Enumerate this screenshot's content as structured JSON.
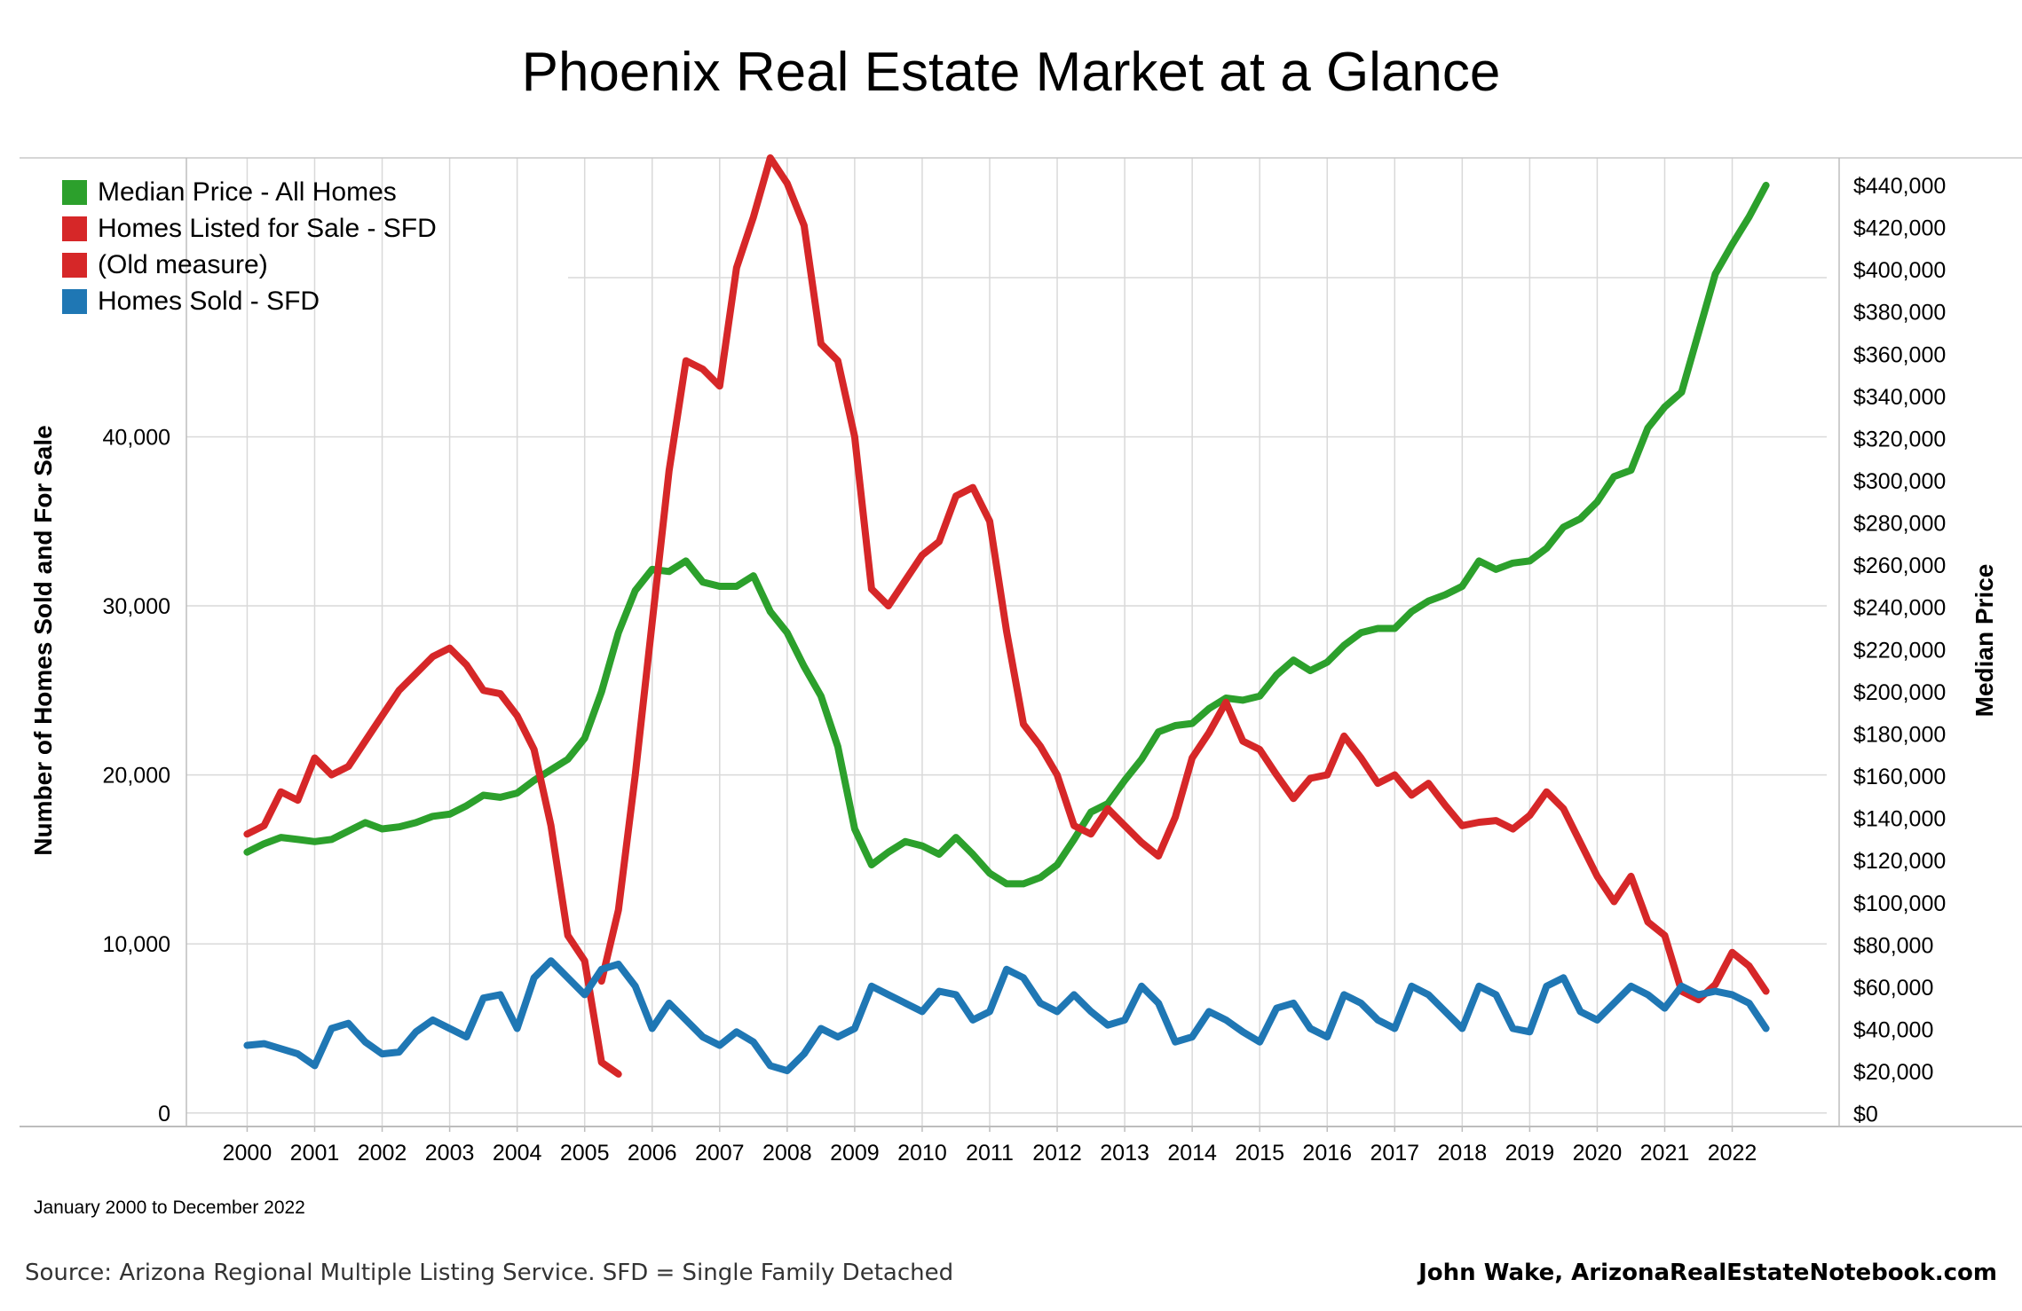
{
  "title": "Phoenix Real Estate Market at a Glance",
  "date_range": "January 2000 to December 2022",
  "source": "Source: Arizona Regional Multiple Listing Service. SFD = Single Family Detached",
  "byline": "John Wake, ArizonaRealEstateNotebook.com",
  "legend": [
    {
      "label": "Median Price - All Homes",
      "color": "#2ca02c"
    },
    {
      "label": "Homes Listed for Sale - SFD",
      "color": "#d62728"
    },
    {
      "label": "(Old measure)",
      "color": "#d62728"
    },
    {
      "label": "Homes Sold - SFD",
      "color": "#1f77b4"
    }
  ],
  "chart_data": {
    "type": "line",
    "title": "Phoenix Real Estate Market at a Glance",
    "xlabel": "",
    "ylabel_left": "Number of Homes Sold and For Sale",
    "ylabel_right": "Median Price",
    "x_ticks": [
      "2000",
      "2001",
      "2002",
      "2003",
      "2004",
      "2005",
      "2006",
      "2007",
      "2008",
      "2009",
      "2010",
      "2011",
      "2012",
      "2013",
      "2014",
      "2015",
      "2016",
      "2017",
      "2018",
      "2019",
      "2020",
      "2021",
      "2022"
    ],
    "y_left_ticks": [
      "0",
      "10,000",
      "20,000",
      "30,000",
      "40,000"
    ],
    "y_right_ticks": [
      "$0",
      "$20,000",
      "$40,000",
      "$60,000",
      "$80,000",
      "$100,000",
      "$120,000",
      "$140,000",
      "$160,000",
      "$180,000",
      "$200,000",
      "$220,000",
      "$240,000",
      "$260,000",
      "$280,000",
      "$300,000",
      "$320,000",
      "$340,000",
      "$360,000",
      "$380,000",
      "$400,000",
      "$420,000",
      "$440,000"
    ],
    "x_range": [
      1999.1,
      2023.4
    ],
    "y_left_range": [
      -800,
      56500
    ],
    "y_right_range": [
      -6000,
      453000
    ],
    "grid": true,
    "legend_position": "top-left",
    "series": [
      {
        "name": "Median Price - All Homes",
        "axis": "right",
        "color": "#2ca02c",
        "points": [
          [
            2000.0,
            124000
          ],
          [
            2000.25,
            128000
          ],
          [
            2000.5,
            131000
          ],
          [
            2000.75,
            130000
          ],
          [
            2001.0,
            129000
          ],
          [
            2001.25,
            130000
          ],
          [
            2001.5,
            134000
          ],
          [
            2001.75,
            138000
          ],
          [
            2002.0,
            135000
          ],
          [
            2002.25,
            136000
          ],
          [
            2002.5,
            138000
          ],
          [
            2002.75,
            141000
          ],
          [
            2003.0,
            142000
          ],
          [
            2003.25,
            146000
          ],
          [
            2003.5,
            151000
          ],
          [
            2003.75,
            150000
          ],
          [
            2004.0,
            152000
          ],
          [
            2004.25,
            158000
          ],
          [
            2004.5,
            163000
          ],
          [
            2004.75,
            168000
          ],
          [
            2005.0,
            178000
          ],
          [
            2005.25,
            200000
          ],
          [
            2005.5,
            228000
          ],
          [
            2005.75,
            248000
          ],
          [
            2006.0,
            258000
          ],
          [
            2006.25,
            257000
          ],
          [
            2006.5,
            262000
          ],
          [
            2006.75,
            252000
          ],
          [
            2007.0,
            250000
          ],
          [
            2007.25,
            250000
          ],
          [
            2007.5,
            255000
          ],
          [
            2007.75,
            238000
          ],
          [
            2008.0,
            228000
          ],
          [
            2008.25,
            212000
          ],
          [
            2008.5,
            198000
          ],
          [
            2008.75,
            174000
          ],
          [
            2009.0,
            135000
          ],
          [
            2009.25,
            118000
          ],
          [
            2009.5,
            124000
          ],
          [
            2009.75,
            129000
          ],
          [
            2010.0,
            127000
          ],
          [
            2010.25,
            123000
          ],
          [
            2010.5,
            131000
          ],
          [
            2010.75,
            123000
          ],
          [
            2011.0,
            114000
          ],
          [
            2011.25,
            109000
          ],
          [
            2011.5,
            109000
          ],
          [
            2011.75,
            112000
          ],
          [
            2012.0,
            118000
          ],
          [
            2012.25,
            130000
          ],
          [
            2012.5,
            143000
          ],
          [
            2012.75,
            147000
          ],
          [
            2013.0,
            158000
          ],
          [
            2013.25,
            168000
          ],
          [
            2013.5,
            181000
          ],
          [
            2013.75,
            184000
          ],
          [
            2014.0,
            185000
          ],
          [
            2014.25,
            192000
          ],
          [
            2014.5,
            197000
          ],
          [
            2014.75,
            196000
          ],
          [
            2015.0,
            198000
          ],
          [
            2015.25,
            208000
          ],
          [
            2015.5,
            215000
          ],
          [
            2015.75,
            210000
          ],
          [
            2016.0,
            214000
          ],
          [
            2016.25,
            222000
          ],
          [
            2016.5,
            228000
          ],
          [
            2016.75,
            230000
          ],
          [
            2017.0,
            230000
          ],
          [
            2017.25,
            238000
          ],
          [
            2017.5,
            243000
          ],
          [
            2017.75,
            246000
          ],
          [
            2018.0,
            250000
          ],
          [
            2018.25,
            262000
          ],
          [
            2018.5,
            258000
          ],
          [
            2018.75,
            261000
          ],
          [
            2019.0,
            262000
          ],
          [
            2019.25,
            268000
          ],
          [
            2019.5,
            278000
          ],
          [
            2019.75,
            282000
          ],
          [
            2020.0,
            290000
          ],
          [
            2020.25,
            302000
          ],
          [
            2020.5,
            305000
          ],
          [
            2020.75,
            325000
          ],
          [
            2021.0,
            335000
          ],
          [
            2021.25,
            342000
          ],
          [
            2021.5,
            370000
          ],
          [
            2021.75,
            398000
          ],
          [
            2022.0,
            412000
          ],
          [
            2022.25,
            425000
          ],
          [
            2022.5,
            440000
          ]
        ]
      },
      {
        "name": "Homes Listed for Sale - SFD",
        "axis": "left",
        "color": "#d62728",
        "points": [
          [
            2005.25,
            7800
          ],
          [
            2005.5,
            12000
          ],
          [
            2005.75,
            20000
          ],
          [
            2006.0,
            29000
          ],
          [
            2006.25,
            38000
          ],
          [
            2006.5,
            44500
          ],
          [
            2006.75,
            44000
          ],
          [
            2007.0,
            43000
          ],
          [
            2007.25,
            50000
          ],
          [
            2007.5,
            53000
          ],
          [
            2007.75,
            56500
          ],
          [
            2008.0,
            55000
          ],
          [
            2008.25,
            52500
          ],
          [
            2008.5,
            45500
          ],
          [
            2008.75,
            44500
          ],
          [
            2009.0,
            40000
          ],
          [
            2009.25,
            31000
          ],
          [
            2009.5,
            30000
          ],
          [
            2009.75,
            31500
          ],
          [
            2010.0,
            33000
          ],
          [
            2010.25,
            33800
          ],
          [
            2010.5,
            36500
          ],
          [
            2010.75,
            37000
          ],
          [
            2011.0,
            35000
          ],
          [
            2011.25,
            28500
          ],
          [
            2011.5,
            23000
          ],
          [
            2011.75,
            21700
          ],
          [
            2012.0,
            20000
          ],
          [
            2012.25,
            17000
          ],
          [
            2012.5,
            16500
          ],
          [
            2012.75,
            18000
          ],
          [
            2013.0,
            17000
          ],
          [
            2013.25,
            16000
          ],
          [
            2013.5,
            15200
          ],
          [
            2013.75,
            17500
          ],
          [
            2014.0,
            21000
          ],
          [
            2014.25,
            22500
          ],
          [
            2014.5,
            24300
          ],
          [
            2014.75,
            22000
          ],
          [
            2015.0,
            21500
          ],
          [
            2015.25,
            20000
          ],
          [
            2015.5,
            18600
          ],
          [
            2015.75,
            19800
          ],
          [
            2016.0,
            20000
          ],
          [
            2016.25,
            22300
          ],
          [
            2016.5,
            21000
          ],
          [
            2016.75,
            19500
          ],
          [
            2017.0,
            20000
          ],
          [
            2017.25,
            18800
          ],
          [
            2017.5,
            19500
          ],
          [
            2017.75,
            18200
          ],
          [
            2018.0,
            17000
          ],
          [
            2018.25,
            17200
          ],
          [
            2018.5,
            17300
          ],
          [
            2018.75,
            16800
          ],
          [
            2019.0,
            17600
          ],
          [
            2019.25,
            19000
          ],
          [
            2019.5,
            18000
          ],
          [
            2019.75,
            16000
          ],
          [
            2020.0,
            14000
          ],
          [
            2020.25,
            12500
          ],
          [
            2020.5,
            14000
          ],
          [
            2020.75,
            11300
          ],
          [
            2021.0,
            10500
          ],
          [
            2021.25,
            7200
          ],
          [
            2021.5,
            6700
          ],
          [
            2021.75,
            7600
          ],
          [
            2022.0,
            9500
          ],
          [
            2022.25,
            8700
          ],
          [
            2022.5,
            7200
          ]
        ]
      },
      {
        "name": "(Old measure)",
        "axis": "left",
        "color": "#d62728",
        "points": [
          [
            2000.0,
            16500
          ],
          [
            2000.25,
            17000
          ],
          [
            2000.5,
            19000
          ],
          [
            2000.75,
            18500
          ],
          [
            2001.0,
            21000
          ],
          [
            2001.25,
            20000
          ],
          [
            2001.5,
            20500
          ],
          [
            2001.75,
            22000
          ],
          [
            2002.0,
            23500
          ],
          [
            2002.25,
            25000
          ],
          [
            2002.5,
            26000
          ],
          [
            2002.75,
            27000
          ],
          [
            2003.0,
            27500
          ],
          [
            2003.25,
            26500
          ],
          [
            2003.5,
            25000
          ],
          [
            2003.75,
            24800
          ],
          [
            2004.0,
            23500
          ],
          [
            2004.25,
            21500
          ],
          [
            2004.5,
            17000
          ],
          [
            2004.75,
            10500
          ],
          [
            2005.0,
            9000
          ],
          [
            2005.25,
            3000
          ],
          [
            2005.5,
            2300
          ]
        ]
      },
      {
        "name": "Homes Sold - SFD",
        "axis": "left",
        "color": "#1f77b4",
        "points": [
          [
            2000.0,
            4000
          ],
          [
            2000.25,
            4100
          ],
          [
            2000.5,
            3800
          ],
          [
            2000.75,
            3500
          ],
          [
            2001.0,
            2800
          ],
          [
            2001.25,
            5000
          ],
          [
            2001.5,
            5300
          ],
          [
            2001.75,
            4200
          ],
          [
            2002.0,
            3500
          ],
          [
            2002.25,
            3600
          ],
          [
            2002.5,
            4800
          ],
          [
            2002.75,
            5500
          ],
          [
            2003.0,
            5000
          ],
          [
            2003.25,
            4500
          ],
          [
            2003.5,
            6800
          ],
          [
            2003.75,
            7000
          ],
          [
            2004.0,
            5000
          ],
          [
            2004.25,
            8000
          ],
          [
            2004.5,
            9000
          ],
          [
            2004.75,
            8000
          ],
          [
            2005.0,
            7000
          ],
          [
            2005.25,
            8500
          ],
          [
            2005.5,
            8800
          ],
          [
            2005.75,
            7500
          ],
          [
            2006.0,
            5000
          ],
          [
            2006.25,
            6500
          ],
          [
            2006.5,
            5500
          ],
          [
            2006.75,
            4500
          ],
          [
            2007.0,
            4000
          ],
          [
            2007.25,
            4800
          ],
          [
            2007.5,
            4200
          ],
          [
            2007.75,
            2800
          ],
          [
            2008.0,
            2500
          ],
          [
            2008.25,
            3500
          ],
          [
            2008.5,
            5000
          ],
          [
            2008.75,
            4500
          ],
          [
            2009.0,
            5000
          ],
          [
            2009.25,
            7500
          ],
          [
            2009.5,
            7000
          ],
          [
            2009.75,
            6500
          ],
          [
            2010.0,
            6000
          ],
          [
            2010.25,
            7200
          ],
          [
            2010.5,
            7000
          ],
          [
            2010.75,
            5500
          ],
          [
            2011.0,
            6000
          ],
          [
            2011.25,
            8500
          ],
          [
            2011.5,
            8000
          ],
          [
            2011.75,
            6500
          ],
          [
            2012.0,
            6000
          ],
          [
            2012.25,
            7000
          ],
          [
            2012.5,
            6000
          ],
          [
            2012.75,
            5200
          ],
          [
            2013.0,
            5500
          ],
          [
            2013.25,
            7500
          ],
          [
            2013.5,
            6500
          ],
          [
            2013.75,
            4200
          ],
          [
            2014.0,
            4500
          ],
          [
            2014.25,
            6000
          ],
          [
            2014.5,
            5500
          ],
          [
            2014.75,
            4800
          ],
          [
            2015.0,
            4200
          ],
          [
            2015.25,
            6200
          ],
          [
            2015.5,
            6500
          ],
          [
            2015.75,
            5000
          ],
          [
            2016.0,
            4500
          ],
          [
            2016.25,
            7000
          ],
          [
            2016.5,
            6500
          ],
          [
            2016.75,
            5500
          ],
          [
            2017.0,
            5000
          ],
          [
            2017.25,
            7500
          ],
          [
            2017.5,
            7000
          ],
          [
            2017.75,
            6000
          ],
          [
            2018.0,
            5000
          ],
          [
            2018.25,
            7500
          ],
          [
            2018.5,
            7000
          ],
          [
            2018.75,
            5000
          ],
          [
            2019.0,
            4800
          ],
          [
            2019.25,
            7500
          ],
          [
            2019.5,
            8000
          ],
          [
            2019.75,
            6000
          ],
          [
            2020.0,
            5500
          ],
          [
            2020.25,
            6500
          ],
          [
            2020.5,
            7500
          ],
          [
            2020.75,
            7000
          ],
          [
            2021.0,
            6200
          ],
          [
            2021.25,
            7500
          ],
          [
            2021.5,
            7000
          ],
          [
            2021.75,
            7200
          ],
          [
            2022.0,
            7000
          ],
          [
            2022.25,
            6500
          ],
          [
            2022.5,
            5000
          ]
        ]
      }
    ]
  }
}
